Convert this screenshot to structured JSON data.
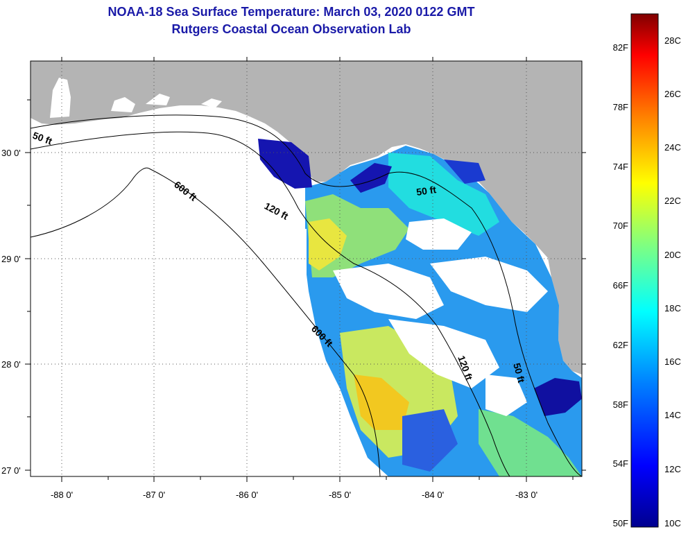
{
  "title": {
    "line1": "NOAA-18 Sea Surface Temperature:  March 03, 2020 0122 GMT",
    "line2": "Rutgers Coastal Ocean Observation Lab"
  },
  "map": {
    "lat_labels": [
      "30 0'",
      "29 0'",
      "28 0'",
      "27 0'"
    ],
    "lon_labels": [
      "-88 0'",
      "-87 0'",
      "-86 0'",
      "-85 0'",
      "-84 0'",
      "-83 0'"
    ],
    "contour_labels": {
      "c50_west": "50 ft",
      "c50_east": "50 ft",
      "c50_south": "50 ft",
      "c120_north": "120 ft",
      "c120_south": "120 ft",
      "c600_north": "600 ft",
      "c600_south": "600 ft"
    },
    "colors": {
      "land": "#b4b4b4",
      "ocean": "#ffffff",
      "cloud": "#ffffff"
    }
  },
  "colorbar": {
    "fahrenheit": [
      "82F",
      "78F",
      "74F",
      "70F",
      "66F",
      "62F",
      "58F",
      "54F",
      "50F"
    ],
    "celsius": [
      "28C",
      "26C",
      "24C",
      "22C",
      "20C",
      "18C",
      "16C",
      "14C",
      "12C",
      "10C"
    ],
    "colors": [
      "#00008f",
      "#0000ff",
      "#0080ff",
      "#00ffff",
      "#80ff80",
      "#ffff00",
      "#ff8000",
      "#ff0000",
      "#800000"
    ]
  }
}
